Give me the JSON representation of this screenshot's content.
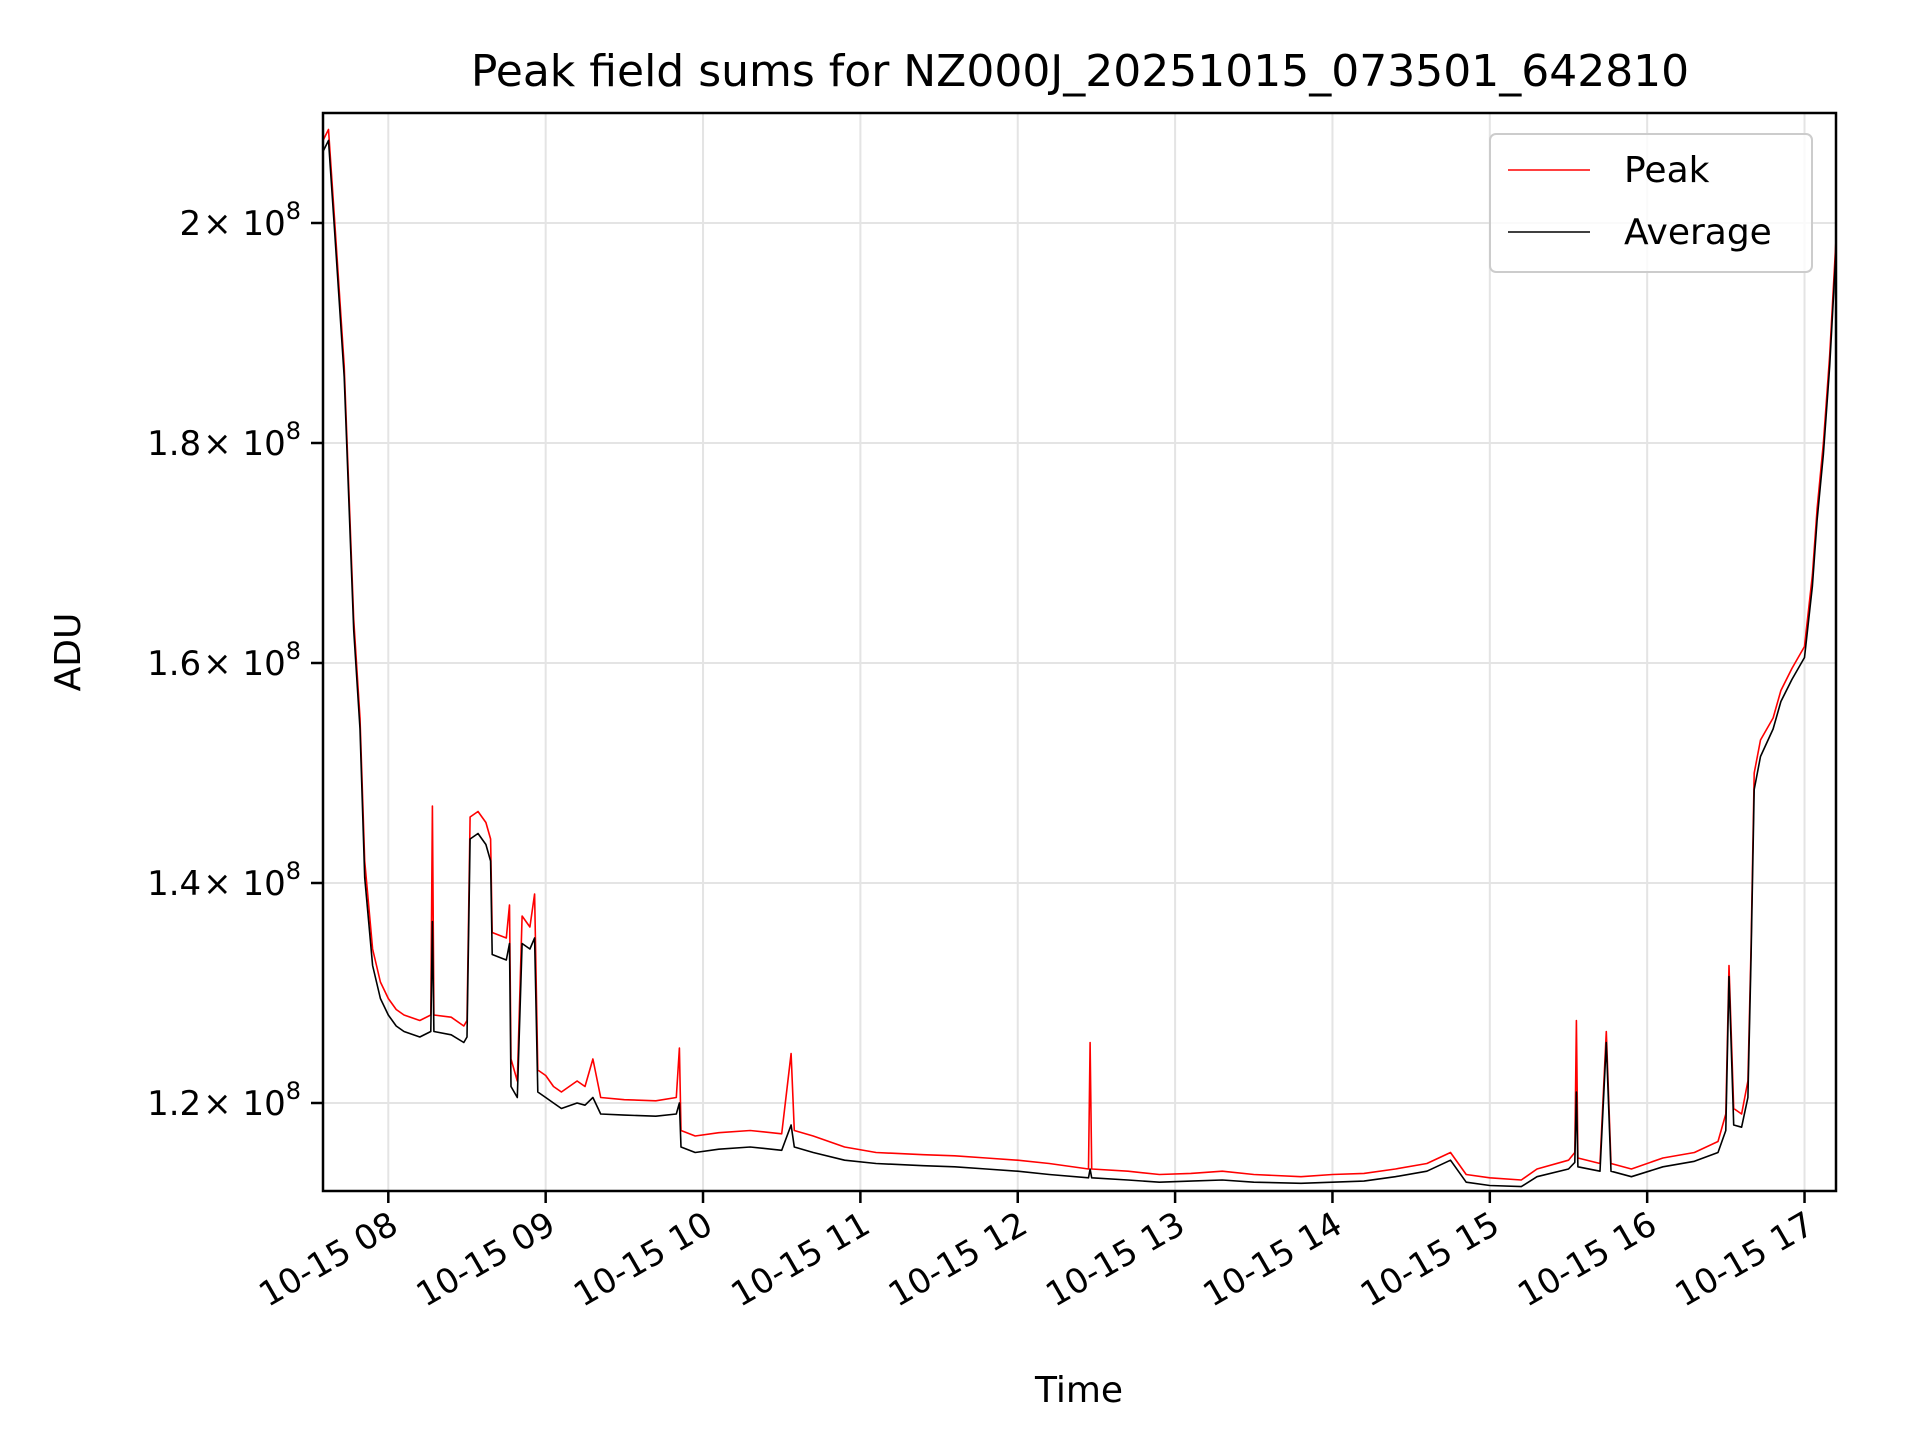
{
  "chart_data": {
    "type": "line",
    "title": "Peak field sums for NZ000J_20251015_073501_642810",
    "xlabel": "Time",
    "ylabel": "ADU",
    "grid": true,
    "legend_position": "top-right",
    "x_range_hours": [
      7.585,
      17.2
    ],
    "ylim": [
      112000000,
      210000000
    ],
    "x_ticks": [
      {
        "label": "10-15 08",
        "hour": 8
      },
      {
        "label": "10-15 09",
        "hour": 9
      },
      {
        "label": "10-15 10",
        "hour": 10
      },
      {
        "label": "10-15 11",
        "hour": 11
      },
      {
        "label": "10-15 12",
        "hour": 12
      },
      {
        "label": "10-15 13",
        "hour": 13
      },
      {
        "label": "10-15 14",
        "hour": 14
      },
      {
        "label": "10-15 15",
        "hour": 15
      },
      {
        "label": "10-15 16",
        "hour": 16
      },
      {
        "label": "10-15 17",
        "hour": 17
      }
    ],
    "y_ticks": [
      {
        "label": "1.2",
        "value": 120000000
      },
      {
        "label": "1.4",
        "value": 140000000
      },
      {
        "label": "1.6",
        "value": 160000000
      },
      {
        "label": "1.8",
        "value": 180000000
      },
      {
        "label": "2",
        "value": 200000000
      }
    ],
    "y_tick_multiplier": "× 10",
    "y_tick_exponent": "8",
    "series": [
      {
        "name": "Peak",
        "color": "#ff0000",
        "points": [
          [
            7.585,
            207.5
          ],
          [
            7.62,
            208.5
          ],
          [
            7.66,
            200.0
          ],
          [
            7.72,
            187.0
          ],
          [
            7.78,
            164.0
          ],
          [
            7.82,
            155.0
          ],
          [
            7.85,
            142.0
          ],
          [
            7.9,
            134.0
          ],
          [
            7.95,
            131.0
          ],
          [
            8.0,
            129.5
          ],
          [
            8.05,
            128.5
          ],
          [
            8.1,
            128.0
          ],
          [
            8.2,
            127.5
          ],
          [
            8.27,
            128.0
          ],
          [
            8.28,
            147.0
          ],
          [
            8.29,
            128.0
          ],
          [
            8.4,
            127.8
          ],
          [
            8.48,
            127.0
          ],
          [
            8.5,
            127.5
          ],
          [
            8.52,
            146.0
          ],
          [
            8.57,
            146.5
          ],
          [
            8.62,
            145.5
          ],
          [
            8.65,
            144.0
          ],
          [
            8.66,
            135.5
          ],
          [
            8.75,
            135.0
          ],
          [
            8.77,
            138.0
          ],
          [
            8.78,
            124.0
          ],
          [
            8.82,
            122.0
          ],
          [
            8.85,
            137.0
          ],
          [
            8.9,
            136.0
          ],
          [
            8.93,
            139.0
          ],
          [
            8.95,
            123.0
          ],
          [
            9.0,
            122.5
          ],
          [
            9.05,
            121.5
          ],
          [
            9.1,
            121.0
          ],
          [
            9.2,
            122.0
          ],
          [
            9.25,
            121.5
          ],
          [
            9.3,
            124.0
          ],
          [
            9.35,
            120.5
          ],
          [
            9.5,
            120.3
          ],
          [
            9.7,
            120.2
          ],
          [
            9.83,
            120.5
          ],
          [
            9.85,
            125.0
          ],
          [
            9.86,
            117.5
          ],
          [
            9.95,
            117.0
          ],
          [
            10.1,
            117.3
          ],
          [
            10.3,
            117.5
          ],
          [
            10.5,
            117.2
          ],
          [
            10.56,
            124.5
          ],
          [
            10.58,
            117.5
          ],
          [
            10.7,
            117.0
          ],
          [
            10.9,
            116.0
          ],
          [
            11.1,
            115.5
          ],
          [
            11.4,
            115.3
          ],
          [
            11.6,
            115.2
          ],
          [
            11.8,
            115.0
          ],
          [
            12.0,
            114.8
          ],
          [
            12.2,
            114.5
          ],
          [
            12.45,
            114.0
          ],
          [
            12.46,
            125.5
          ],
          [
            12.47,
            114.0
          ],
          [
            12.7,
            113.8
          ],
          [
            12.9,
            113.5
          ],
          [
            13.1,
            113.6
          ],
          [
            13.3,
            113.8
          ],
          [
            13.5,
            113.5
          ],
          [
            13.8,
            113.3
          ],
          [
            14.0,
            113.5
          ],
          [
            14.2,
            113.6
          ],
          [
            14.4,
            114.0
          ],
          [
            14.6,
            114.5
          ],
          [
            14.75,
            115.5
          ],
          [
            14.85,
            113.5
          ],
          [
            15.0,
            113.2
          ],
          [
            15.2,
            113.0
          ],
          [
            15.3,
            114.0
          ],
          [
            15.5,
            114.8
          ],
          [
            15.54,
            115.5
          ],
          [
            15.55,
            127.5
          ],
          [
            15.56,
            115.0
          ],
          [
            15.7,
            114.5
          ],
          [
            15.74,
            126.5
          ],
          [
            15.77,
            114.5
          ],
          [
            15.9,
            114.0
          ],
          [
            16.1,
            115.0
          ],
          [
            16.3,
            115.5
          ],
          [
            16.45,
            116.5
          ],
          [
            16.5,
            119.0
          ],
          [
            16.52,
            132.5
          ],
          [
            16.55,
            119.5
          ],
          [
            16.6,
            119.0
          ],
          [
            16.64,
            122.0
          ],
          [
            16.66,
            134.0
          ],
          [
            16.68,
            150.0
          ],
          [
            16.72,
            153.0
          ],
          [
            16.8,
            155.0
          ],
          [
            16.85,
            157.5
          ],
          [
            16.92,
            159.5
          ],
          [
            17.0,
            161.5
          ],
          [
            17.05,
            168.0
          ],
          [
            17.08,
            174.0
          ],
          [
            17.12,
            180.0
          ],
          [
            17.16,
            188.0
          ],
          [
            17.2,
            198.5
          ]
        ]
      },
      {
        "name": "Average",
        "color": "#000000",
        "points": [
          [
            7.585,
            206.5
          ],
          [
            7.62,
            207.5
          ],
          [
            7.66,
            199.0
          ],
          [
            7.72,
            186.0
          ],
          [
            7.78,
            163.0
          ],
          [
            7.82,
            154.0
          ],
          [
            7.85,
            140.5
          ],
          [
            7.9,
            132.5
          ],
          [
            7.95,
            129.5
          ],
          [
            8.0,
            128.0
          ],
          [
            8.05,
            127.0
          ],
          [
            8.1,
            126.5
          ],
          [
            8.2,
            126.0
          ],
          [
            8.27,
            126.5
          ],
          [
            8.28,
            136.5
          ],
          [
            8.29,
            126.5
          ],
          [
            8.4,
            126.2
          ],
          [
            8.48,
            125.5
          ],
          [
            8.5,
            126.0
          ],
          [
            8.52,
            144.0
          ],
          [
            8.57,
            144.5
          ],
          [
            8.62,
            143.5
          ],
          [
            8.65,
            142.0
          ],
          [
            8.66,
            133.5
          ],
          [
            8.75,
            133.0
          ],
          [
            8.77,
            134.5
          ],
          [
            8.78,
            121.5
          ],
          [
            8.82,
            120.5
          ],
          [
            8.85,
            134.5
          ],
          [
            8.9,
            134.0
          ],
          [
            8.93,
            135.0
          ],
          [
            8.95,
            121.0
          ],
          [
            9.0,
            120.5
          ],
          [
            9.05,
            120.0
          ],
          [
            9.1,
            119.5
          ],
          [
            9.2,
            120.0
          ],
          [
            9.25,
            119.8
          ],
          [
            9.3,
            120.5
          ],
          [
            9.35,
            119.0
          ],
          [
            9.5,
            118.9
          ],
          [
            9.7,
            118.8
          ],
          [
            9.83,
            119.0
          ],
          [
            9.85,
            120.0
          ],
          [
            9.86,
            116.0
          ],
          [
            9.95,
            115.5
          ],
          [
            10.1,
            115.8
          ],
          [
            10.3,
            116.0
          ],
          [
            10.5,
            115.7
          ],
          [
            10.56,
            118.0
          ],
          [
            10.58,
            116.0
          ],
          [
            10.7,
            115.5
          ],
          [
            10.9,
            114.8
          ],
          [
            11.1,
            114.5
          ],
          [
            11.4,
            114.3
          ],
          [
            11.6,
            114.2
          ],
          [
            11.8,
            114.0
          ],
          [
            12.0,
            113.8
          ],
          [
            12.2,
            113.5
          ],
          [
            12.45,
            113.2
          ],
          [
            12.46,
            114.0
          ],
          [
            12.47,
            113.2
          ],
          [
            12.7,
            113.0
          ],
          [
            12.9,
            112.8
          ],
          [
            13.1,
            112.9
          ],
          [
            13.3,
            113.0
          ],
          [
            13.5,
            112.8
          ],
          [
            13.8,
            112.7
          ],
          [
            14.0,
            112.8
          ],
          [
            14.2,
            112.9
          ],
          [
            14.4,
            113.3
          ],
          [
            14.6,
            113.8
          ],
          [
            14.75,
            114.8
          ],
          [
            14.85,
            112.8
          ],
          [
            15.0,
            112.5
          ],
          [
            15.2,
            112.4
          ],
          [
            15.3,
            113.3
          ],
          [
            15.5,
            114.0
          ],
          [
            15.54,
            114.6
          ],
          [
            15.55,
            121.0
          ],
          [
            15.56,
            114.2
          ],
          [
            15.7,
            113.8
          ],
          [
            15.74,
            125.5
          ],
          [
            15.77,
            113.8
          ],
          [
            15.9,
            113.3
          ],
          [
            16.1,
            114.2
          ],
          [
            16.3,
            114.7
          ],
          [
            16.45,
            115.5
          ],
          [
            16.5,
            117.5
          ],
          [
            16.52,
            131.5
          ],
          [
            16.55,
            118.0
          ],
          [
            16.6,
            117.8
          ],
          [
            16.64,
            120.5
          ],
          [
            16.66,
            133.0
          ],
          [
            16.68,
            148.5
          ],
          [
            16.72,
            151.5
          ],
          [
            16.8,
            154.0
          ],
          [
            16.85,
            156.5
          ],
          [
            16.92,
            158.5
          ],
          [
            17.0,
            160.5
          ],
          [
            17.05,
            167.0
          ],
          [
            17.08,
            173.0
          ],
          [
            17.12,
            179.0
          ],
          [
            17.16,
            187.0
          ],
          [
            17.2,
            197.5
          ]
        ]
      }
    ]
  }
}
